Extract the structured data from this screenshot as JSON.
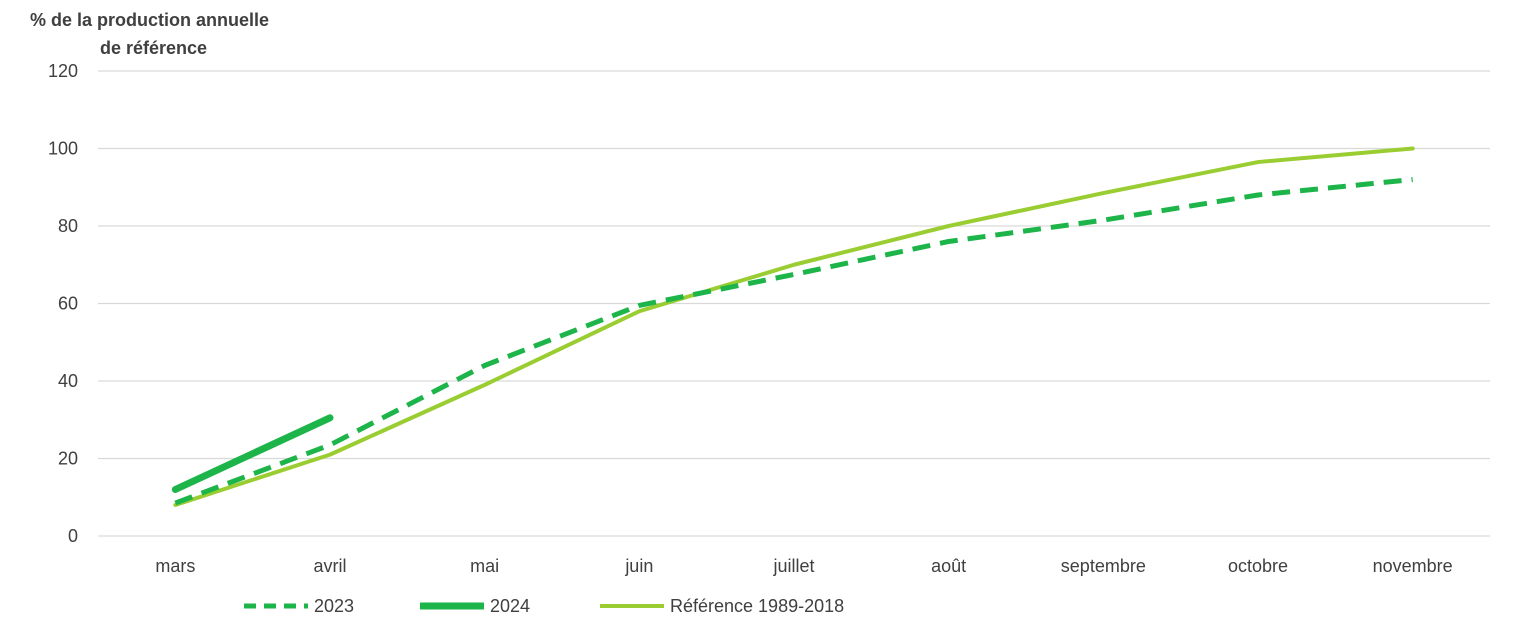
{
  "chart_data": {
    "type": "line",
    "ylabel_lines": [
      "% de  la production  annuelle",
      "de référence"
    ],
    "categories": [
      "mars",
      "avril",
      "mai",
      "juin",
      "juillet",
      "août",
      "septembre",
      "octobre",
      "novembre"
    ],
    "ylim": [
      0,
      120
    ],
    "yticks": [
      0,
      20,
      40,
      60,
      80,
      100,
      120
    ],
    "grid": true,
    "legend_position": "bottom",
    "series": [
      {
        "name": "Référence 1989-2018",
        "style": "solid",
        "color": "#9ACD32",
        "values": [
          8,
          21,
          39,
          58,
          70,
          80,
          88.5,
          96.5,
          100
        ]
      },
      {
        "name": "2023",
        "style": "dashed",
        "color": "#1DB54A",
        "values": [
          8.5,
          23.5,
          44,
          59.5,
          67.5,
          76,
          81.5,
          88,
          92
        ]
      },
      {
        "name": "2024",
        "style": "solid-thick",
        "color": "#1DB54A",
        "values": [
          12,
          30.5,
          null,
          null,
          null,
          null,
          null,
          null,
          null
        ]
      }
    ],
    "legend_order": [
      "2023",
      "2024",
      "Référence 1989-2018"
    ]
  }
}
